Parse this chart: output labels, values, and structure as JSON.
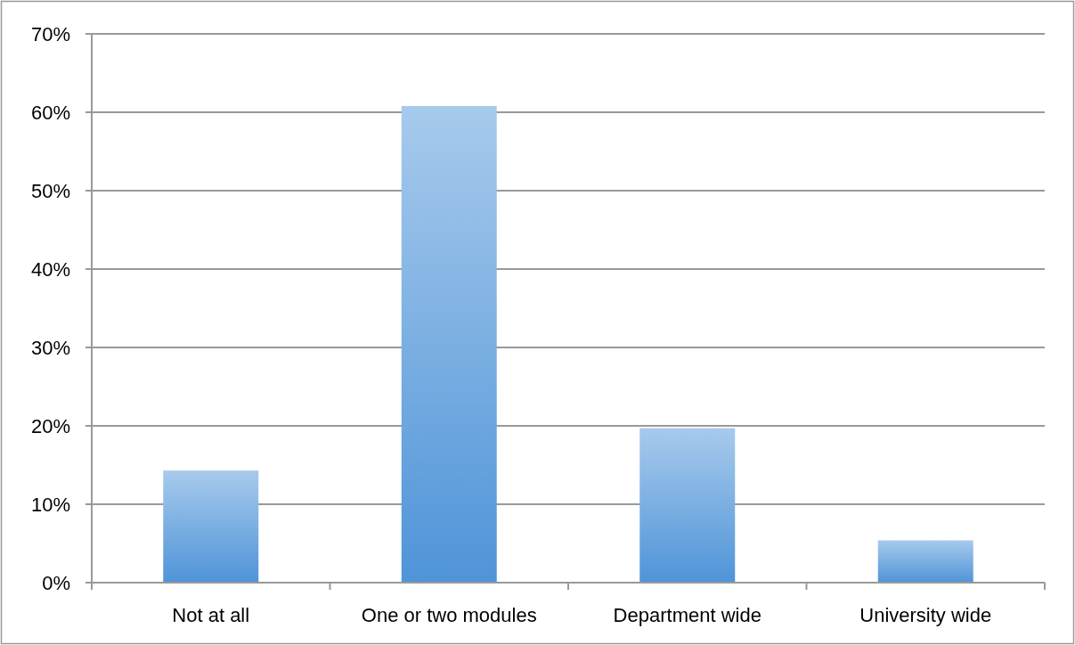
{
  "chart_data": {
    "type": "bar",
    "categories": [
      "Not at all",
      "One or two modules",
      "Department wide",
      "University wide"
    ],
    "values": [
      14.3,
      60.8,
      19.7,
      5.4
    ],
    "color": "#4f94d8",
    "ylim": [
      0,
      70
    ],
    "yticks": [
      {
        "value": 0,
        "label": "0%"
      },
      {
        "value": 10,
        "label": "10%"
      },
      {
        "value": 20,
        "label": "20%"
      },
      {
        "value": 30,
        "label": "30%"
      },
      {
        "value": 40,
        "label": "40%"
      },
      {
        "value": 50,
        "label": "50%"
      },
      {
        "value": 60,
        "label": "60%"
      },
      {
        "value": 70,
        "label": "70%"
      }
    ],
    "grid": "y"
  }
}
